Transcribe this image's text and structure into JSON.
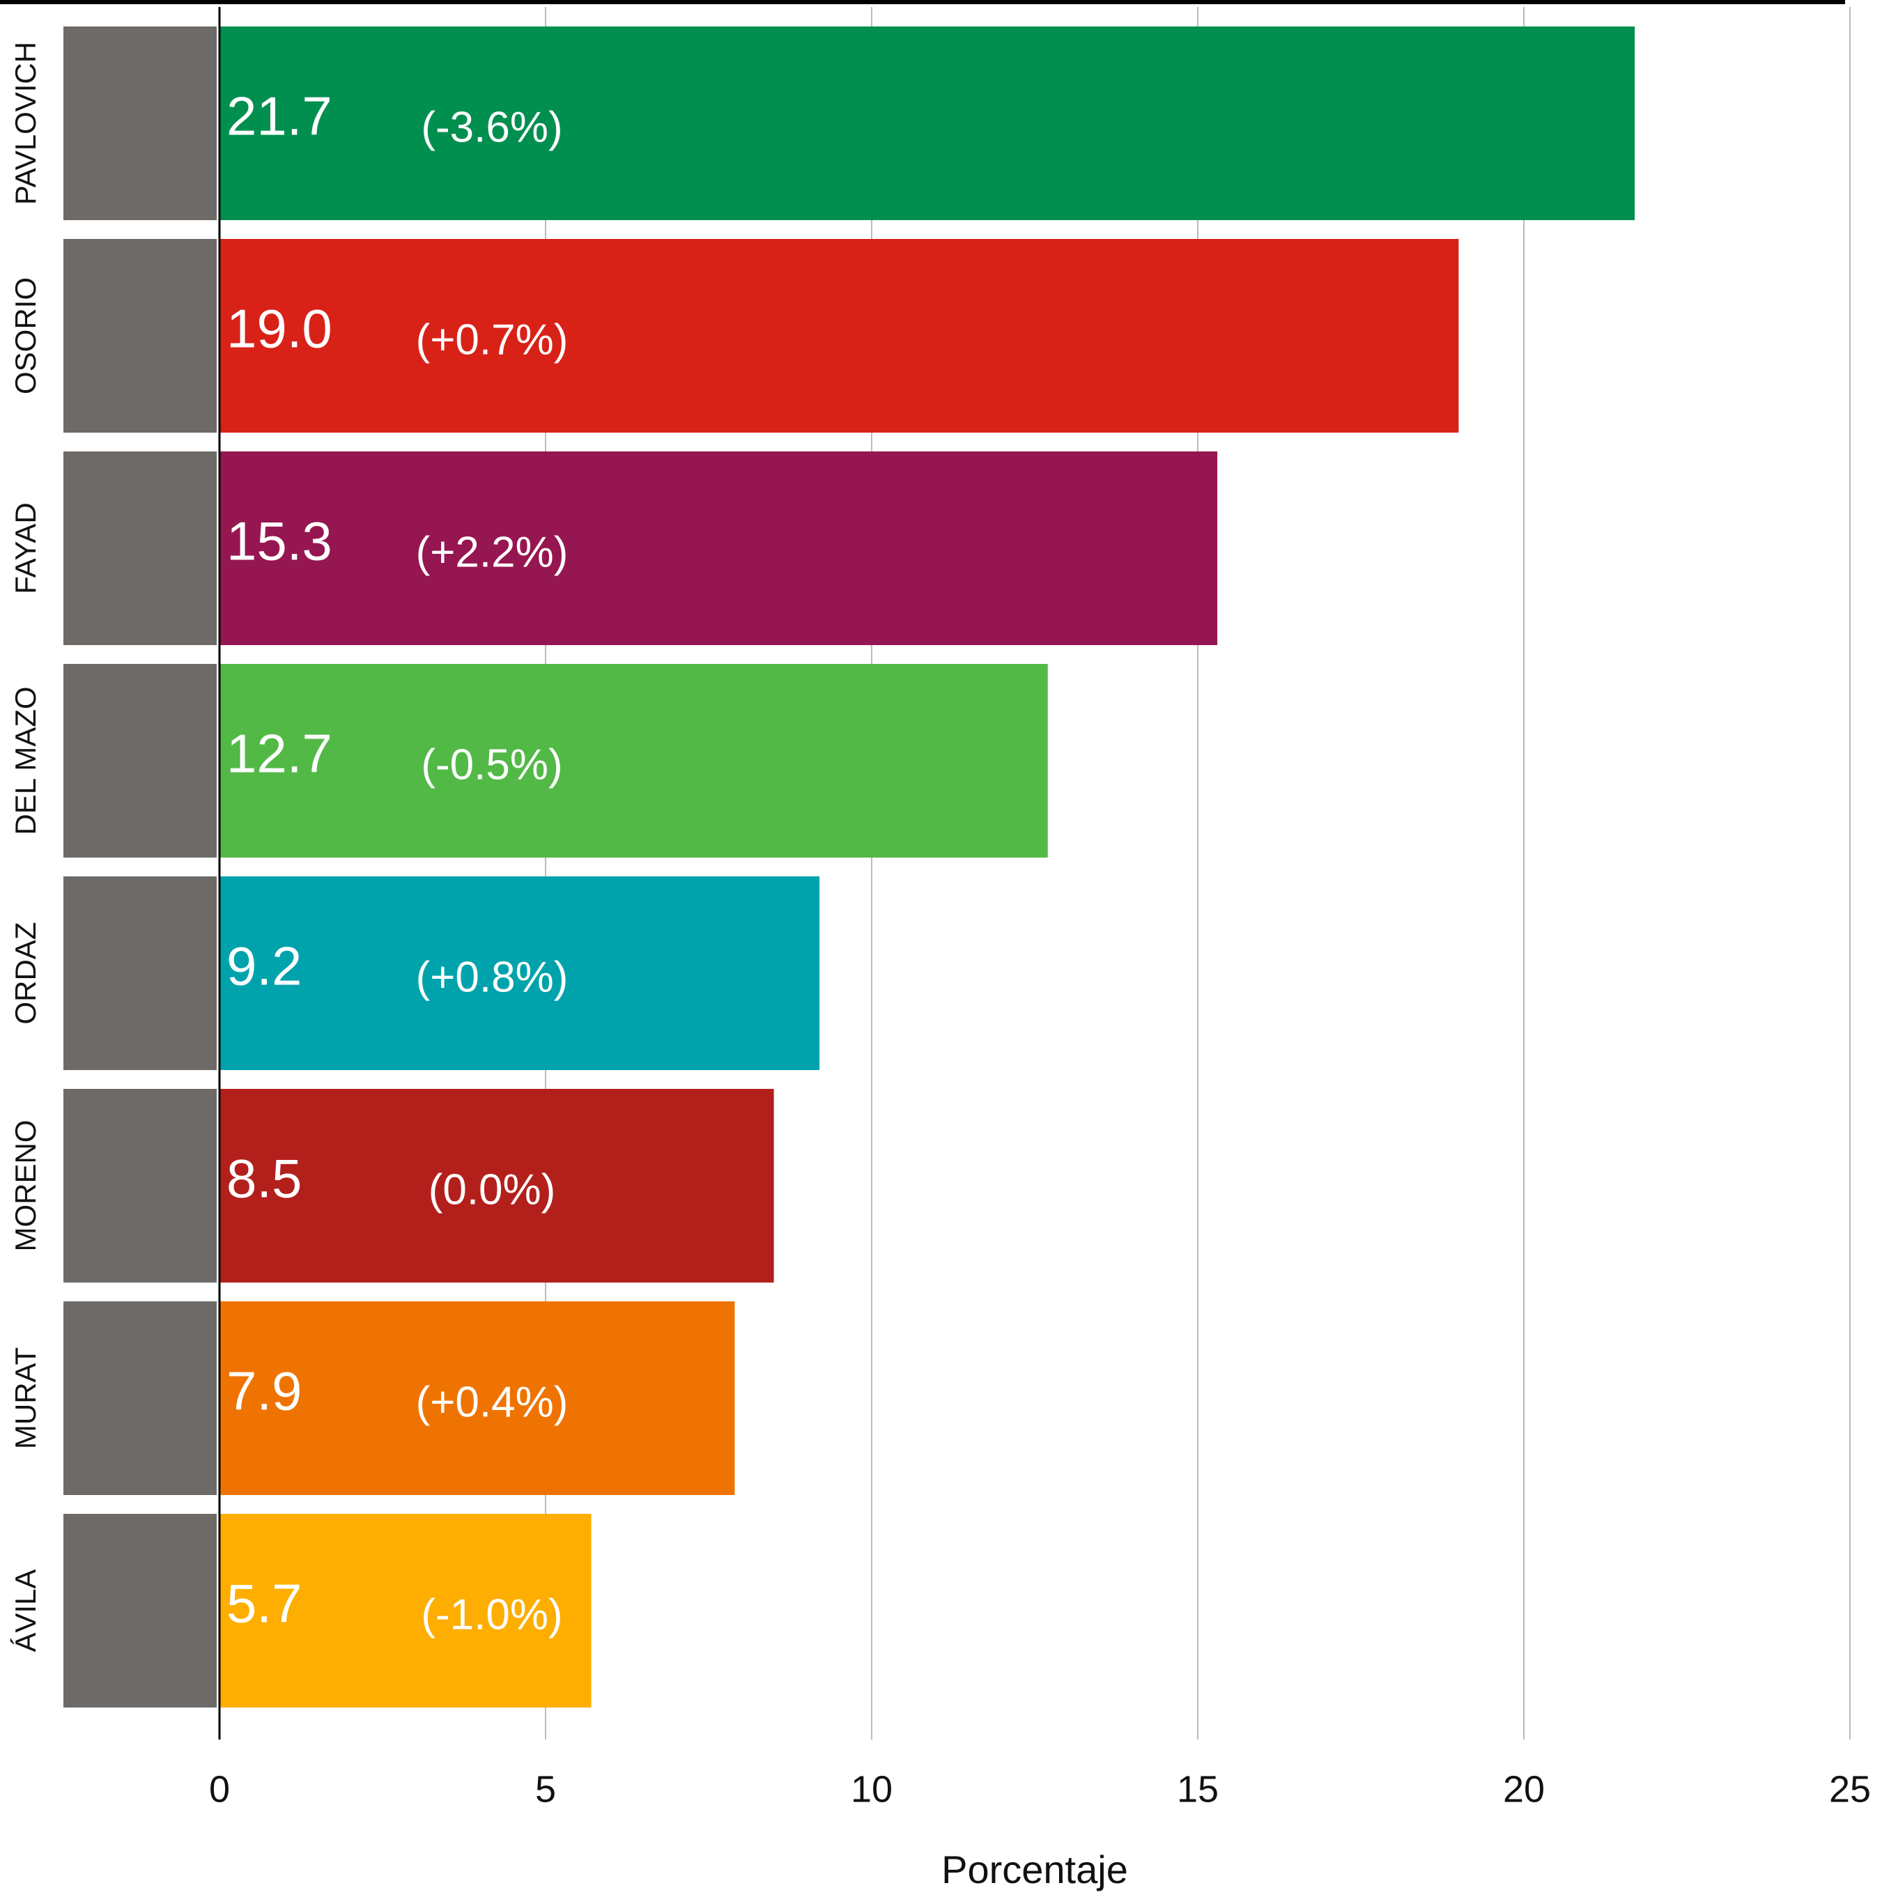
{
  "chart_data": {
    "type": "bar",
    "orientation": "horizontal",
    "categories": [
      "PAVLOVICH",
      "OSORIO",
      "FAYAD",
      "DEL MAZO",
      "ORDAZ",
      "MORENO",
      "MURAT",
      "ÁVILA"
    ],
    "values": [
      21.7,
      19.0,
      15.3,
      12.7,
      9.2,
      8.5,
      7.9,
      5.7
    ],
    "value_labels": [
      "21.7",
      "19.0",
      "15.3",
      "12.7",
      "9.2",
      "8.5",
      "7.9",
      "5.7"
    ],
    "changes": [
      "(-3.6%)",
      "(+0.7%)",
      "(+2.2%)",
      "(-0.5%)",
      "(+0.8%)",
      "(0.0%)",
      "(+0.4%)",
      "(-1.0%)"
    ],
    "colors": [
      "#008f4f",
      "#d82218",
      "#961651",
      "#52b947",
      "#00a3ac",
      "#b3201c",
      "#ef7300",
      "#fdae00"
    ],
    "xlim": [
      0,
      25
    ],
    "xticks": [
      0,
      5,
      10,
      15,
      20,
      25
    ],
    "xlabel": "Porcentaje",
    "grid": true
  }
}
